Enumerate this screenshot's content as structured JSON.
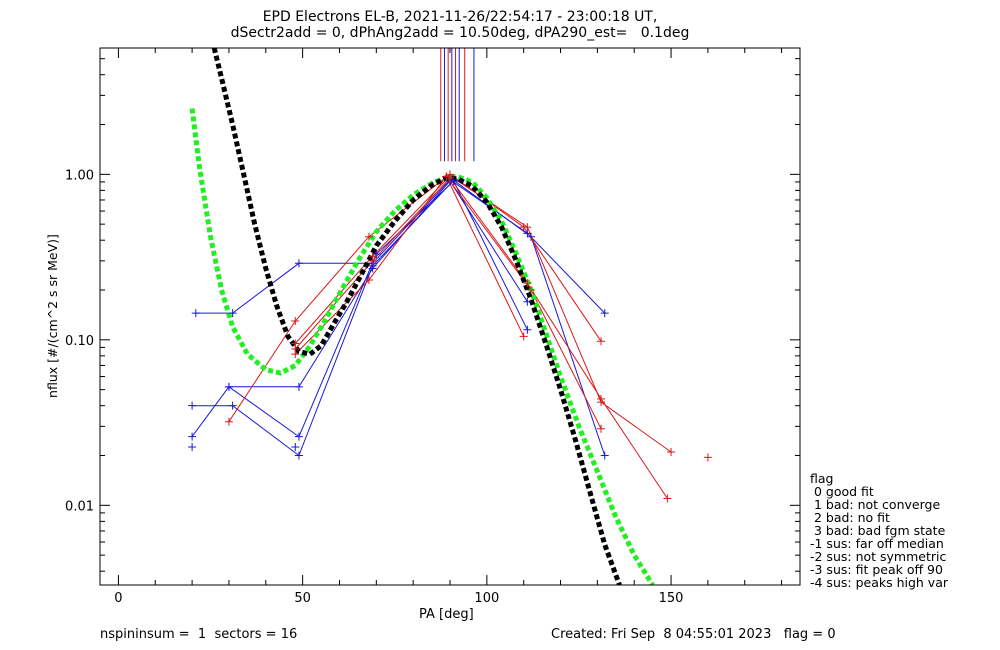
{
  "title_line1": "EPD Electrons EL-B, 2021-11-26/22:54:17 - 23:00:18 UT,",
  "title_line2": "dSectr2add = 0, dPhAng2add = 10.50deg, dPA290_est=   0.1deg",
  "footer_left": "nspininsum =  1  sectors = 16",
  "footer_right": "Created: Fri Sep  8 04:55:01 2023   flag = 0",
  "legend": {
    "title": "flag",
    "items": [
      " 0 good fit",
      " 1 bad: not converge",
      " 2 bad: no fit",
      " 3 bad: bad fgm state",
      "-1 sus: far off median",
      "-2 sus: not symmetric",
      "-3 sus: fit peak off 90",
      "-4 sus: peaks high var"
    ]
  },
  "colors": {
    "red": "#d81818",
    "blue": "#1818d8",
    "green": "#22ee22",
    "black": "#000000"
  },
  "chart_data": {
    "type": "line",
    "xlabel": "PA [deg]",
    "ylabel": "nflux [#/(cm^2 s sr MeV)]",
    "xlim": [
      -5,
      185
    ],
    "ylim": [
      0.0033,
      5.8
    ],
    "yscale": "log",
    "xticks": [
      0,
      50,
      100,
      150
    ],
    "yticks": [
      {
        "v": 0.01,
        "label": "0.01"
      },
      {
        "v": 0.1,
        "label": "0.10"
      },
      {
        "v": 1.0,
        "label": "1.00"
      }
    ],
    "vlines": {
      "y_range": [
        1.2,
        5.8
      ],
      "lines": [
        {
          "x": 87.5,
          "color": "red"
        },
        {
          "x": 88.5,
          "color": "blue"
        },
        {
          "x": 89.5,
          "color": "red"
        },
        {
          "x": 90.5,
          "color": "blue"
        },
        {
          "x": 91.5,
          "color": "red"
        },
        {
          "x": 92.5,
          "color": "blue"
        },
        {
          "x": 94.0,
          "color": "red"
        },
        {
          "x": 96.5,
          "color": "blue"
        }
      ]
    },
    "series": [
      {
        "color": "blue",
        "points": [
          [
            21,
            0.145
          ],
          [
            31,
            0.145
          ],
          [
            49,
            0.29
          ],
          [
            69,
            0.29
          ],
          [
            90,
            0.93
          ],
          [
            111,
            0.44
          ],
          [
            132,
            0.145
          ]
        ]
      },
      {
        "color": "blue",
        "points": [
          [
            20,
            0.04
          ],
          [
            31,
            0.04
          ],
          [
            49,
            0.02
          ],
          [
            69,
            0.28
          ],
          [
            91,
            0.92
          ],
          [
            112,
            0.42
          ],
          [
            132,
            0.02
          ]
        ]
      },
      {
        "color": "blue",
        "points": [
          [
            30,
            0.052
          ],
          [
            49,
            0.052
          ],
          [
            69,
            0.27
          ],
          [
            90,
            0.91
          ],
          [
            111,
            0.17
          ]
        ]
      },
      {
        "color": "blue",
        "points": [
          [
            20,
            0.026
          ],
          [
            30,
            0.052
          ],
          [
            49,
            0.026
          ],
          [
            70,
            0.33
          ],
          [
            91,
            0.91
          ],
          [
            111,
            0.115
          ]
        ]
      },
      {
        "color": "red",
        "points": [
          [
            30,
            0.032
          ],
          [
            48,
            0.13
          ],
          [
            68,
            0.42
          ],
          [
            90,
            1.0
          ],
          [
            110,
            0.48
          ],
          [
            131,
            0.098
          ]
        ]
      },
      {
        "color": "red",
        "points": [
          [
            48,
            0.082
          ],
          [
            68,
            0.23
          ],
          [
            89,
            0.97
          ],
          [
            110,
            0.105
          ]
        ]
      },
      {
        "color": "red",
        "points": [
          [
            48,
            0.088
          ],
          [
            69,
            0.3
          ],
          [
            90,
            0.95
          ],
          [
            111,
            0.22
          ],
          [
            131,
            0.044
          ],
          [
            149,
            0.011
          ]
        ]
      },
      {
        "color": "red",
        "points": [
          [
            48,
            0.095
          ],
          [
            69,
            0.32
          ],
          [
            90,
            0.98
          ],
          [
            111,
            0.48
          ],
          [
            131,
            0.042
          ],
          [
            150,
            0.021
          ]
        ]
      },
      {
        "color": "red",
        "points": [
          [
            89,
            0.97
          ],
          [
            112,
            0.2
          ],
          [
            131,
            0.029
          ]
        ]
      }
    ],
    "markers_only": [
      {
        "color": "red",
        "points": [
          [
            160,
            0.0195
          ]
        ]
      },
      {
        "color": "blue",
        "points": [
          [
            20,
            0.0225
          ],
          [
            48,
            0.0225
          ]
        ]
      }
    ],
    "fits": [
      {
        "color": "green",
        "points": [
          [
            20,
            2.5
          ],
          [
            22,
            1.1
          ],
          [
            25,
            0.42
          ],
          [
            28,
            0.2
          ],
          [
            31,
            0.12
          ],
          [
            35,
            0.082
          ],
          [
            40,
            0.066
          ],
          [
            44,
            0.063
          ],
          [
            48,
            0.07
          ],
          [
            52,
            0.092
          ],
          [
            56,
            0.13
          ],
          [
            60,
            0.19
          ],
          [
            65,
            0.3
          ],
          [
            70,
            0.45
          ],
          [
            75,
            0.6
          ],
          [
            80,
            0.75
          ],
          [
            85,
            0.88
          ],
          [
            89,
            0.96
          ],
          [
            92,
            0.97
          ],
          [
            96,
            0.9
          ],
          [
            100,
            0.72
          ],
          [
            104,
            0.52
          ],
          [
            108,
            0.33
          ],
          [
            112,
            0.2
          ],
          [
            116,
            0.11
          ],
          [
            120,
            0.06
          ],
          [
            125,
            0.03
          ],
          [
            130,
            0.016
          ],
          [
            135,
            0.0085
          ],
          [
            140,
            0.005
          ],
          [
            145,
            0.0033
          ]
        ]
      },
      {
        "color": "black",
        "points": [
          [
            26,
            5.8
          ],
          [
            28,
            3.8
          ],
          [
            31,
            2.0
          ],
          [
            34,
            1.0
          ],
          [
            37,
            0.5
          ],
          [
            40,
            0.27
          ],
          [
            43,
            0.16
          ],
          [
            46,
            0.105
          ],
          [
            49,
            0.085
          ],
          [
            52,
            0.082
          ],
          [
            55,
            0.092
          ],
          [
            58,
            0.12
          ],
          [
            62,
            0.17
          ],
          [
            66,
            0.25
          ],
          [
            70,
            0.37
          ],
          [
            75,
            0.52
          ],
          [
            80,
            0.7
          ],
          [
            85,
            0.86
          ],
          [
            89,
            0.95
          ],
          [
            92,
            0.94
          ],
          [
            96,
            0.85
          ],
          [
            100,
            0.68
          ],
          [
            104,
            0.48
          ],
          [
            108,
            0.3
          ],
          [
            112,
            0.175
          ],
          [
            116,
            0.095
          ],
          [
            120,
            0.05
          ],
          [
            124,
            0.025
          ],
          [
            128,
            0.012
          ],
          [
            132,
            0.0058
          ],
          [
            136,
            0.0033
          ]
        ]
      }
    ]
  }
}
